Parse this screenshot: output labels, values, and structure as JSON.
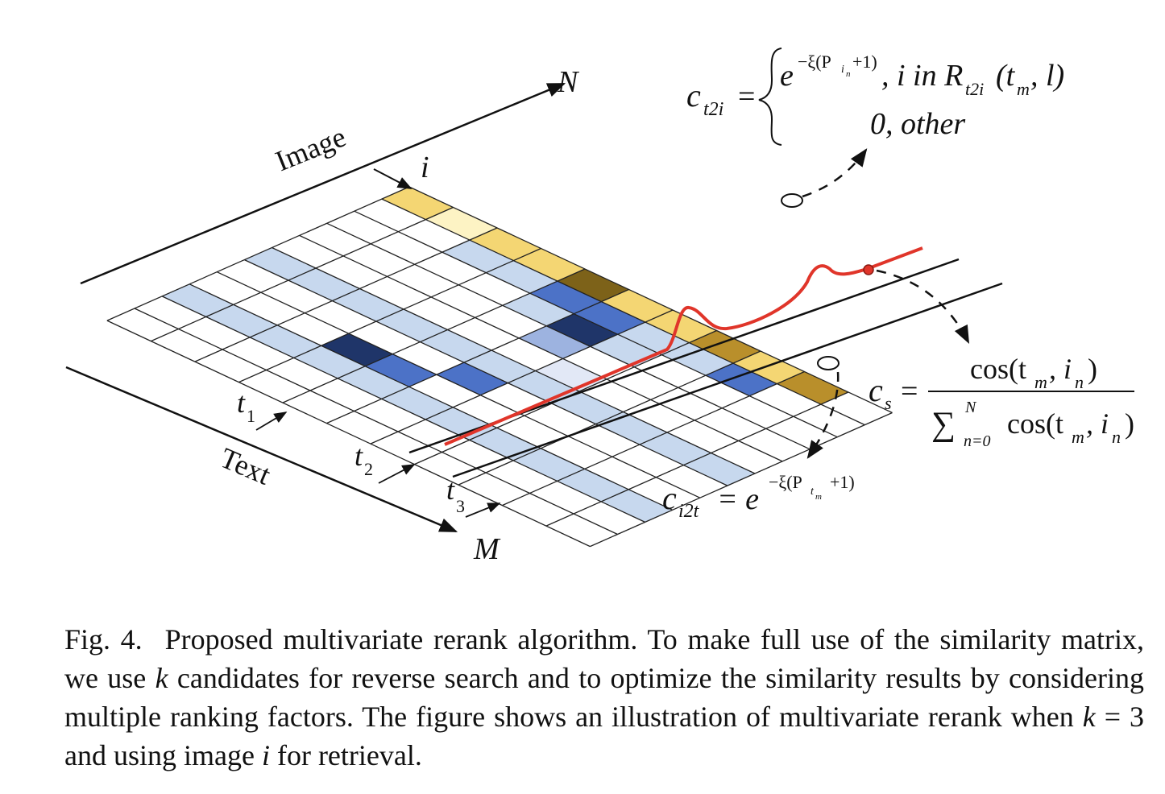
{
  "axes": {
    "image_label": "Image",
    "text_label": "Text",
    "n_label": "N",
    "m_label": "M",
    "i_label": "i"
  },
  "rows": [
    {
      "sym": "t",
      "sub": "1"
    },
    {
      "sym": "t",
      "sub": "2"
    },
    {
      "sym": "t",
      "sub": "3"
    }
  ],
  "matrix": {
    "rows": 11,
    "cols": 11,
    "colors": {
      "yellow": "#f4d673",
      "yellow_light": "#fdf3c4",
      "yellow_dark": "#7d6219",
      "yellow_mid": "#b98f2b",
      "blue_light": "#c7d8ee",
      "blue_pale": "#e2e8f6",
      "blue_mid": "#4c72c7",
      "blue_dark": "#1f3569",
      "blue_periwinkle": "#9db3e0",
      "curve": "#e0352a"
    },
    "cells": [
      {
        "r": 0,
        "c": 0,
        "color": "yellow"
      },
      {
        "r": 1,
        "c": 0,
        "color": "yellow_light"
      },
      {
        "r": 2,
        "c": 0,
        "color": "yellow"
      },
      {
        "r": 3,
        "c": 0,
        "color": "yellow"
      },
      {
        "r": 4,
        "c": 0,
        "color": "yellow_dark"
      },
      {
        "r": 5,
        "c": 0,
        "color": "yellow"
      },
      {
        "r": 6,
        "c": 0,
        "color": "yellow"
      },
      {
        "r": 7,
        "c": 0,
        "color": "yellow_mid"
      },
      {
        "r": 8,
        "c": 0,
        "color": "yellow"
      },
      {
        "r": 9,
        "c": 0,
        "color": "yellow_mid"
      },
      {
        "r": 2,
        "c": 1,
        "color": "blue_light"
      },
      {
        "r": 3,
        "c": 1,
        "color": "blue_light"
      },
      {
        "r": 4,
        "c": 1,
        "color": "blue_mid"
      },
      {
        "r": 5,
        "c": 1,
        "color": "blue_mid"
      },
      {
        "r": 6,
        "c": 1,
        "color": "blue_light"
      },
      {
        "r": 7,
        "c": 1,
        "color": "blue_light"
      },
      {
        "r": 8,
        "c": 1,
        "color": "blue_mid"
      },
      {
        "r": 4,
        "c": 2,
        "color": "blue_light"
      },
      {
        "r": 5,
        "c": 2,
        "color": "blue_dark"
      },
      {
        "r": 6,
        "c": 2,
        "color": "blue_light"
      },
      {
        "r": 5,
        "c": 3,
        "color": "blue_periwinkle"
      },
      {
        "r": 6,
        "c": 4,
        "color": "blue_pale"
      },
      {
        "r": 0,
        "c": 5,
        "color": "blue_light"
      },
      {
        "r": 1,
        "c": 5,
        "color": "blue_light"
      },
      {
        "r": 2,
        "c": 5,
        "color": "blue_light"
      },
      {
        "r": 3,
        "c": 5,
        "color": "blue_light"
      },
      {
        "r": 4,
        "c": 5,
        "color": "blue_light"
      },
      {
        "r": 5,
        "c": 5,
        "color": "blue_light"
      },
      {
        "r": 6,
        "c": 5,
        "color": "blue_light"
      },
      {
        "r": 7,
        "c": 5,
        "color": "blue_light"
      },
      {
        "r": 8,
        "c": 5,
        "color": "blue_light"
      },
      {
        "r": 9,
        "c": 5,
        "color": "blue_light"
      },
      {
        "r": 10,
        "c": 5,
        "color": "blue_light"
      },
      {
        "r": 0,
        "c": 8,
        "color": "blue_light"
      },
      {
        "r": 1,
        "c": 8,
        "color": "blue_light"
      },
      {
        "r": 2,
        "c": 8,
        "color": "blue_light"
      },
      {
        "r": 3,
        "c": 8,
        "color": "blue_light"
      },
      {
        "r": 4,
        "c": 8,
        "color": "blue_light"
      },
      {
        "r": 5,
        "c": 8,
        "color": "blue_light"
      },
      {
        "r": 6,
        "c": 8,
        "color": "blue_light"
      },
      {
        "r": 7,
        "c": 8,
        "color": "blue_light"
      },
      {
        "r": 8,
        "c": 8,
        "color": "blue_light"
      },
      {
        "r": 9,
        "c": 8,
        "color": "blue_light"
      },
      {
        "r": 10,
        "c": 8,
        "color": "blue_light"
      },
      {
        "r": 3,
        "c": 7,
        "color": "blue_dark"
      },
      {
        "r": 4,
        "c": 7,
        "color": "blue_mid"
      },
      {
        "r": 5,
        "c": 6,
        "color": "blue_mid"
      }
    ]
  },
  "formulas": {
    "c_t2i": {
      "lhs": "c",
      "lhs_sub": "t2i",
      "eq": "=",
      "case1_base": "e",
      "case1_exp": "−ξ(P",
      "case1_exp_sub": "i",
      "case1_exp_subsub": "n",
      "case1_exp_tail": "+1)",
      "case1_cond": ", i in R",
      "case1_cond_sub": "t2i",
      "case1_cond_args": "(t",
      "case1_cond_args_sub": "m",
      "case1_cond_args_tail": ", l)",
      "case2": "0, other"
    },
    "c_s": {
      "lhs": "c",
      "lhs_sub": "s",
      "eq": "=",
      "num": "cos(t",
      "num_sub1": "m",
      "num_mid": ", i",
      "num_sub2": "n",
      "num_tail": ")",
      "den_sum": "∑",
      "den_sup": "N",
      "den_sub": "n=0",
      "den": "cos(t",
      "den_sub1": "m",
      "den_mid": ", i",
      "den_sub2": "n",
      "den_tail": ")"
    },
    "c_i2t": {
      "lhs": "c",
      "lhs_sub": "i2t",
      "eq": "= e",
      "exp": "−ξ(P",
      "exp_sub": "t",
      "exp_subsub": "m",
      "exp_tail": "+1)"
    }
  },
  "caption": {
    "label": "Fig. 4.",
    "text_1": "Proposed multivariate rerank algorithm. To make full use of the similarity matrix, we use ",
    "k1": "k",
    "text_2": " candidates for reverse search and to optimize the similarity results by considering multiple ranking factors. The figure shows an illustration of multivariate rerank when ",
    "k2": "k",
    "text_3": " = 3 and using image ",
    "i": "i",
    "text_4": " for retrieval."
  }
}
